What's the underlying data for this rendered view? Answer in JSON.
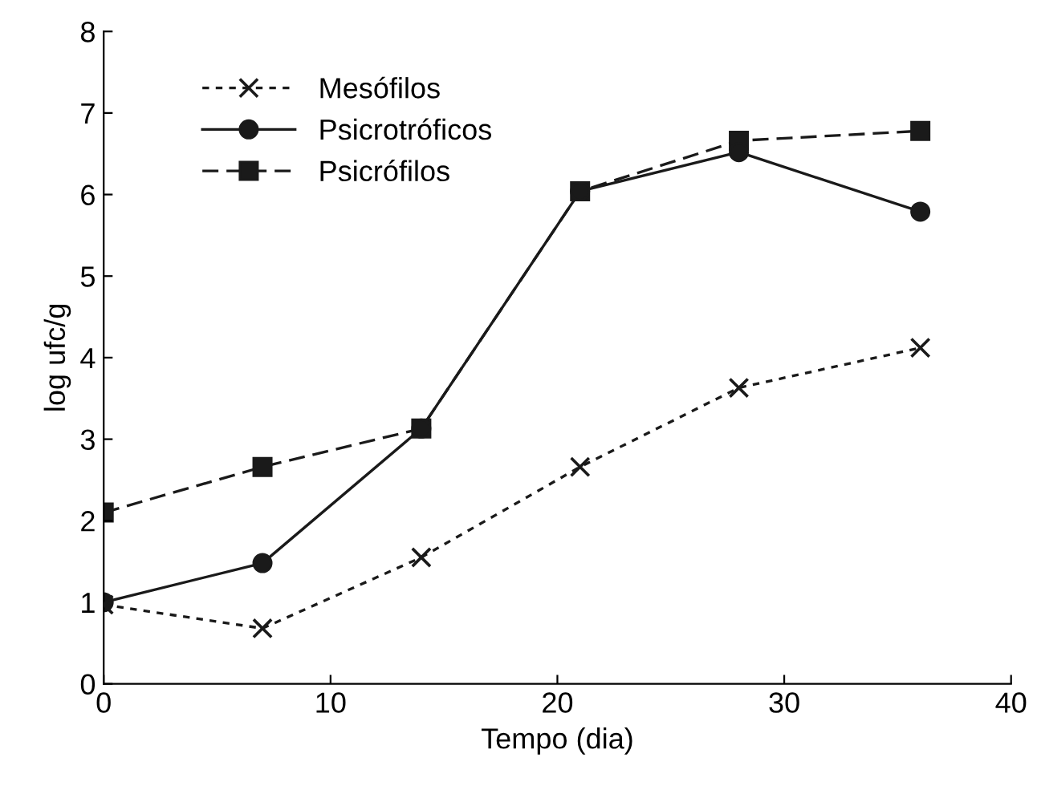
{
  "chart_data": {
    "type": "line",
    "xlabel": "Tempo (dia)",
    "ylabel": "log ufc/g",
    "x": [
      0,
      7,
      14,
      21,
      28,
      36
    ],
    "series": [
      {
        "name": "Mesófilos",
        "color": "#1a1a1a",
        "values": [
          0.97,
          0.68,
          1.55,
          2.66,
          3.63,
          4.12
        ],
        "marker": "cross",
        "line_style": "dotted"
      },
      {
        "name": "Psicrotróficos",
        "color": "#1a1a1a",
        "values": [
          1.0,
          1.48,
          3.13,
          6.04,
          6.52,
          5.79
        ],
        "marker": "circle",
        "line_style": "solid"
      },
      {
        "name": "Psicrófilos",
        "color": "#1a1a1a",
        "values": [
          2.1,
          2.66,
          3.13,
          6.04,
          6.66,
          6.78
        ],
        "marker": "square",
        "line_style": "dashed"
      }
    ],
    "xlim": [
      0,
      40
    ],
    "xticks": [
      0,
      10,
      20,
      30,
      40
    ],
    "ylim": [
      0,
      8
    ],
    "yticks": [
      0,
      1,
      2,
      3,
      4,
      5,
      6,
      7,
      8
    ],
    "grid": false,
    "legend": "top left"
  }
}
